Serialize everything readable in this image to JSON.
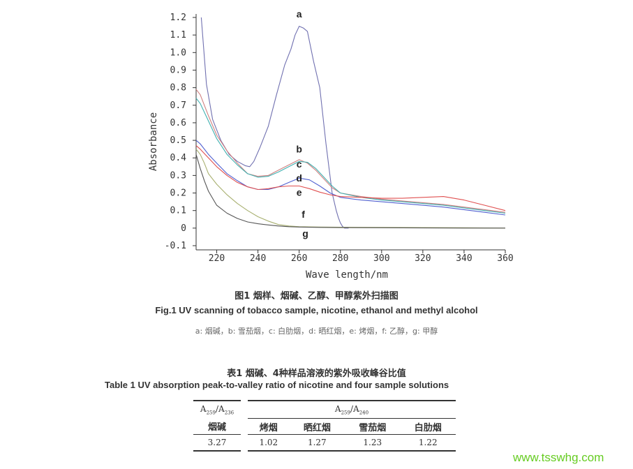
{
  "chart_data": {
    "type": "line",
    "xlabel": "Wave length/nm",
    "ylabel": "Absorbance",
    "xlim": [
      210,
      360
    ],
    "ylim": [
      -0.1,
      1.2
    ],
    "xticks": [
      "220",
      "240",
      "260",
      "280",
      "300",
      "320",
      "340",
      "360"
    ],
    "yticks": [
      "-0.1",
      "0",
      "0.1",
      "0.2",
      "0.3",
      "0.4",
      "0.5",
      "0.6",
      "0.7",
      "0.8",
      "0.9",
      "1.0",
      "1.1",
      "1.2"
    ],
    "grid": false,
    "series": [
      {
        "name": "a",
        "color": "#7070b0",
        "x": [
          212.5,
          215,
          218,
          222,
          226,
          230,
          234,
          236,
          238,
          241,
          245,
          249,
          253,
          256,
          258,
          260,
          262,
          264,
          267,
          270,
          273,
          276,
          278,
          279,
          280,
          281,
          282,
          284
        ],
        "y": [
          1.2,
          0.82,
          0.62,
          0.5,
          0.42,
          0.38,
          0.355,
          0.35,
          0.38,
          0.46,
          0.58,
          0.76,
          0.93,
          1.02,
          1.1,
          1.15,
          1.14,
          1.12,
          0.95,
          0.8,
          0.48,
          0.2,
          0.1,
          0.06,
          0.03,
          0.01,
          0.0,
          0.0
        ]
      },
      {
        "name": "b",
        "color": "#d08080",
        "x": [
          210,
          212,
          216,
          220,
          225,
          230,
          235,
          240,
          245,
          250,
          255,
          260,
          264,
          268,
          272,
          276,
          280,
          290,
          300,
          310,
          320,
          330,
          340,
          350,
          360
        ],
        "y": [
          0.79,
          0.76,
          0.64,
          0.53,
          0.44,
          0.37,
          0.31,
          0.295,
          0.3,
          0.33,
          0.36,
          0.39,
          0.37,
          0.33,
          0.28,
          0.23,
          0.2,
          0.18,
          0.165,
          0.155,
          0.145,
          0.135,
          0.12,
          0.105,
          0.09
        ]
      },
      {
        "name": "c",
        "color": "#40b0b0",
        "x": [
          210,
          212,
          216,
          220,
          225,
          230,
          235,
          240,
          245,
          250,
          255,
          260,
          264,
          268,
          272,
          276,
          280,
          290,
          300,
          310,
          320,
          330,
          340,
          350,
          360
        ],
        "y": [
          0.74,
          0.71,
          0.61,
          0.51,
          0.42,
          0.36,
          0.31,
          0.29,
          0.295,
          0.32,
          0.35,
          0.38,
          0.375,
          0.34,
          0.29,
          0.24,
          0.2,
          0.175,
          0.16,
          0.15,
          0.14,
          0.13,
          0.115,
          0.1,
          0.085
        ]
      },
      {
        "name": "d",
        "color": "#5060d0",
        "x": [
          210,
          212,
          216,
          220,
          225,
          230,
          235,
          240,
          245,
          250,
          255,
          260,
          265,
          270,
          275,
          280,
          290,
          300,
          310,
          320,
          330,
          340,
          350,
          360
        ],
        "y": [
          0.5,
          0.48,
          0.42,
          0.37,
          0.31,
          0.27,
          0.235,
          0.22,
          0.22,
          0.235,
          0.26,
          0.285,
          0.275,
          0.24,
          0.2,
          0.175,
          0.16,
          0.15,
          0.14,
          0.13,
          0.12,
          0.105,
          0.09,
          0.075
        ]
      },
      {
        "name": "e",
        "color": "#e05050",
        "x": [
          210,
          212,
          216,
          220,
          225,
          230,
          235,
          240,
          245,
          250,
          255,
          260,
          265,
          270,
          275,
          280,
          290,
          300,
          310,
          320,
          330,
          340,
          350,
          360
        ],
        "y": [
          0.47,
          0.45,
          0.4,
          0.35,
          0.3,
          0.26,
          0.235,
          0.22,
          0.225,
          0.235,
          0.24,
          0.24,
          0.225,
          0.205,
          0.19,
          0.18,
          0.175,
          0.17,
          0.17,
          0.175,
          0.18,
          0.16,
          0.13,
          0.1
        ]
      },
      {
        "name": "f",
        "color": "#a8b070",
        "x": [
          210,
          212,
          214,
          216,
          220,
          225,
          230,
          235,
          240,
          245,
          250,
          255,
          260,
          270,
          280,
          300,
          320,
          340,
          360
        ],
        "y": [
          0.45,
          0.42,
          0.37,
          0.31,
          0.25,
          0.19,
          0.14,
          0.1,
          0.065,
          0.04,
          0.02,
          0.012,
          0.008,
          0.006,
          0.005,
          0.004,
          0.003,
          0.002,
          0.0
        ]
      },
      {
        "name": "g",
        "color": "#555555",
        "x": [
          210,
          212,
          214,
          216,
          218,
          220,
          225,
          230,
          235,
          240,
          245,
          250,
          255,
          260,
          270,
          280,
          300,
          320,
          340,
          360
        ],
        "y": [
          0.42,
          0.34,
          0.27,
          0.21,
          0.17,
          0.13,
          0.085,
          0.055,
          0.035,
          0.025,
          0.018,
          0.012,
          0.008,
          0.006,
          0.004,
          0.003,
          0.002,
          0.001,
          0.0,
          0.0
        ]
      }
    ],
    "annotations": [
      {
        "text": "a",
        "x": 260,
        "y": 1.2
      },
      {
        "text": "b",
        "x": 260,
        "y": 0.43
      },
      {
        "text": "c",
        "x": 260,
        "y": 0.345
      },
      {
        "text": "d",
        "x": 260,
        "y": 0.265
      },
      {
        "text": "e",
        "x": 260,
        "y": 0.185
      },
      {
        "text": "f",
        "x": 262,
        "y": 0.06
      },
      {
        "text": "g",
        "x": 263,
        "y": -0.05
      }
    ]
  },
  "figure": {
    "caption_cn": "图1 烟样、烟碱、乙醇、甲醇紫外扫描图",
    "caption_en": "Fig.1 UV scanning of tobacco sample, nicotine, ethanol and methyl alcohol",
    "legend_text": "a: 烟碱，b: 雪茄烟，c: 白肋烟，d: 晒红烟，e: 烤烟，f: 乙醇，g: 甲醇"
  },
  "table": {
    "title_cn": "表1 烟碱、4种样品溶液的紫外吸收峰谷比值",
    "title_en": "Table 1 UV absorption peak-to-valley ratio of nicotine and four sample solutions",
    "header_left": {
      "a": "A",
      "sub1": "259",
      "slash": "/",
      "b": "A",
      "sub2": "236"
    },
    "header_right": {
      "a": "A",
      "sub1": "259",
      "slash": "/",
      "b": "A",
      "sub2": "240"
    },
    "columns": [
      "烟碱",
      "烤烟",
      "晒红烟",
      "雪茄烟",
      "白肋烟"
    ],
    "values": [
      "3.27",
      "1.02",
      "1.27",
      "1.23",
      "1.22"
    ]
  },
  "watermark": "www.tsswhg.com"
}
